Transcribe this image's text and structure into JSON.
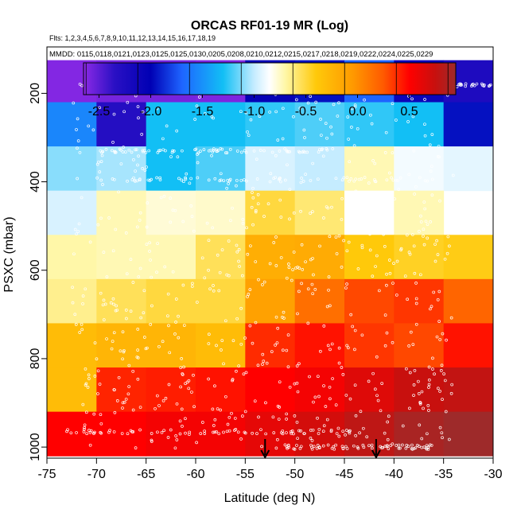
{
  "chart_data": {
    "type": "heatmap",
    "title": "ORCAS RF01-19 MR (Log)",
    "flights_label": "Flts: 1,2,3,4,5,6,7,8,9,10,11,12,13,14,15,16,17,18,19",
    "mmdd_label": "MMDD: 0115,0118,0121,0123,0125,0125,0130,0205,0208,0210,0212,0215,0217,0218,0219,0222,0224,0225,0229",
    "xlabel": "Latitude (deg N)",
    "ylabel": "PSXC (mbar)",
    "xlim": [
      -75,
      -30
    ],
    "ylim": [
      1025,
      95
    ],
    "x_ticks": [
      -75,
      -70,
      -65,
      -60,
      -55,
      -50,
      -45,
      -40,
      -35,
      -30
    ],
    "y_ticks": [
      200,
      400,
      600,
      800,
      1000
    ],
    "colorbar": {
      "range": [
        -2.65,
        0.95
      ],
      "ticks": [
        -2.5,
        -2.0,
        -1.5,
        -1.0,
        -0.5,
        0.0,
        0.5
      ],
      "tick_labels": [
        "-2.5",
        "-2.0",
        "-1.5",
        "-1.0",
        "-0.5",
        "0.0",
        "0.5"
      ],
      "stops": [
        {
          "v": -2.65,
          "color": "#8d2ae6"
        },
        {
          "v": -2.35,
          "color": "#2a10c4"
        },
        {
          "v": -2.0,
          "color": "#0000b4"
        },
        {
          "v": -1.7,
          "color": "#1e64ff"
        },
        {
          "v": -1.3,
          "color": "#12bff5"
        },
        {
          "v": -1.0,
          "color": "#c5ecff"
        },
        {
          "v": -0.85,
          "color": "#ffffff"
        },
        {
          "v": -0.7,
          "color": "#fff7a8"
        },
        {
          "v": -0.4,
          "color": "#ffc90a"
        },
        {
          "v": -0.05,
          "color": "#ff9a00"
        },
        {
          "v": 0.25,
          "color": "#ff5a00"
        },
        {
          "v": 0.5,
          "color": "#ff0000"
        },
        {
          "v": 0.75,
          "color": "#c8100e"
        },
        {
          "v": 0.95,
          "color": "#9e2a2a"
        }
      ]
    },
    "lat_bins": [
      -75,
      -70,
      -65,
      -60,
      -55,
      -50,
      -45,
      -40,
      -35,
      -30
    ],
    "pres_bins": [
      125,
      220,
      320,
      420,
      520,
      620,
      720,
      820,
      920,
      1020
    ],
    "cells": [
      [
        -2.62,
        -2.58,
        -2.58,
        -2.6,
        -2.05,
        -1.95,
        -1.7,
        -2.1,
        -2.25
      ],
      [
        -1.55,
        -2.3,
        -1.3,
        -1.3,
        -1.25,
        -1.2,
        -1.25,
        -1.3,
        -1.95
      ],
      [
        -1.1,
        -1.05,
        -1.3,
        -1.2,
        -0.95,
        -1.0,
        -0.72,
        -0.88,
        -0.92
      ],
      [
        -0.95,
        -0.72,
        -0.78,
        -0.76,
        -0.5,
        -0.6,
        -0.85,
        -0.72,
        null
      ],
      [
        -0.7,
        -0.72,
        -0.72,
        -0.55,
        -0.2,
        -0.18,
        -0.4,
        -0.45,
        -0.42
      ],
      [
        -0.65,
        -0.55,
        -0.5,
        -0.5,
        -0.1,
        0.15,
        0.3,
        0.35,
        0.2
      ],
      [
        -0.3,
        -0.25,
        -0.25,
        -0.3,
        0.38,
        0.45,
        0.35,
        0.3,
        0.45
      ],
      [
        -0.3,
        0.4,
        0.42,
        0.45,
        0.5,
        0.55,
        0.65,
        0.75,
        0.78
      ],
      [
        0.5,
        0.5,
        0.55,
        0.55,
        0.62,
        0.7,
        0.8,
        0.9,
        0.95
      ]
    ],
    "arrows_lat": [
      -53,
      -41.8
    ],
    "annotation": "white circles: individual aircraft sample points; arrows: sounding markers"
  }
}
